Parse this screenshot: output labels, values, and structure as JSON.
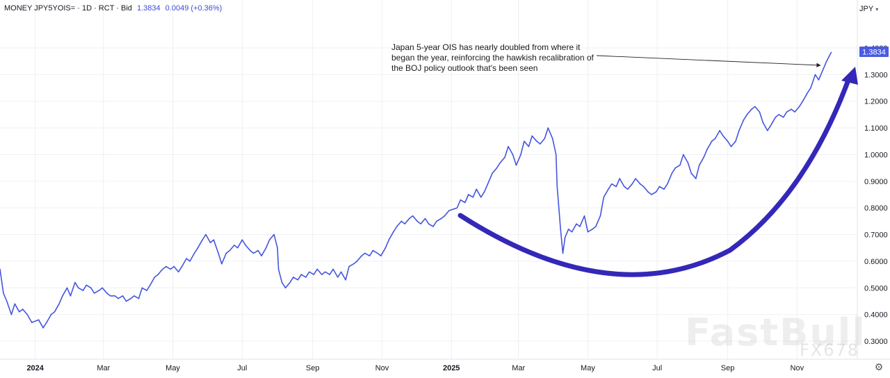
{
  "header": {
    "title": "MONEY JPY5YOIS= · 1D · RCT · Bid",
    "value": "1.3834",
    "change": "0.0049 (+0.36%)"
  },
  "currency_selector": {
    "label": "JPY",
    "icon": "chevron-down-icon"
  },
  "settings_icon": "gear-icon",
  "annotation": {
    "text": "Japan 5-year OIS has nearly doubled from where it began the year, reinforcing the hawkish recalibration of the BOJ policy outlook that's been seen"
  },
  "watermark": {
    "main": "FastBull",
    "sub": "FX678"
  },
  "colors": {
    "series": "#4455dd",
    "curve_arrow": "#3328b8",
    "price_tag": "#4a5be0",
    "grid": "#eef0f3"
  },
  "chart_data": {
    "type": "line",
    "title": "",
    "xlabel": "",
    "ylabel": "",
    "y_unit": "JPY",
    "ylim": [
      0.25,
      1.45
    ],
    "grid": true,
    "last_value_label": "1.3834",
    "y_ticks": [
      {
        "value": 0.3,
        "label": "0.3000"
      },
      {
        "value": 0.4,
        "label": "0.4000"
      },
      {
        "value": 0.5,
        "label": "0.5000"
      },
      {
        "value": 0.6,
        "label": "0.6000"
      },
      {
        "value": 0.7,
        "label": "0.7000"
      },
      {
        "value": 0.8,
        "label": "0.8000"
      },
      {
        "value": 0.9,
        "label": "0.9000"
      },
      {
        "value": 1.0,
        "label": "1.0000"
      },
      {
        "value": 1.1,
        "label": "1.1000"
      },
      {
        "value": 1.2,
        "label": "1.2000"
      },
      {
        "value": 1.3,
        "label": "1.3000"
      },
      {
        "value": 1.4,
        "label": "1.4000"
      }
    ],
    "x_ticks": [
      {
        "date": "2024-01-01",
        "label": "2024",
        "bold": true
      },
      {
        "date": "2024-03-01",
        "label": "Mar"
      },
      {
        "date": "2024-05-01",
        "label": "May"
      },
      {
        "date": "2024-07-01",
        "label": "Jul"
      },
      {
        "date": "2024-09-01",
        "label": "Sep"
      },
      {
        "date": "2024-11-01",
        "label": "Nov"
      },
      {
        "date": "2025-01-01",
        "label": "2025",
        "bold": true
      },
      {
        "date": "2025-03-01",
        "label": "Mar"
      },
      {
        "date": "2025-05-01",
        "label": "May"
      },
      {
        "date": "2025-07-01",
        "label": "Jul"
      },
      {
        "date": "2025-09-01",
        "label": "Sep"
      },
      {
        "date": "2025-11-01",
        "label": "Nov"
      }
    ],
    "x_domain": [
      "2023-12-01",
      "2025-12-24"
    ],
    "series": [
      {
        "points": [
          [
            "2023-12-01",
            0.57
          ],
          [
            "2023-12-04",
            0.48
          ],
          [
            "2023-12-07",
            0.45
          ],
          [
            "2023-12-11",
            0.4
          ],
          [
            "2023-12-14",
            0.44
          ],
          [
            "2023-12-18",
            0.41
          ],
          [
            "2023-12-21",
            0.42
          ],
          [
            "2023-12-25",
            0.4
          ],
          [
            "2023-12-29",
            0.37
          ],
          [
            "2024-01-04",
            0.38
          ],
          [
            "2024-01-08",
            0.35
          ],
          [
            "2024-01-11",
            0.37
          ],
          [
            "2024-01-15",
            0.4
          ],
          [
            "2024-01-18",
            0.41
          ],
          [
            "2024-01-22",
            0.44
          ],
          [
            "2024-01-25",
            0.47
          ],
          [
            "2024-01-29",
            0.5
          ],
          [
            "2024-02-01",
            0.47
          ],
          [
            "2024-02-05",
            0.52
          ],
          [
            "2024-02-08",
            0.5
          ],
          [
            "2024-02-12",
            0.49
          ],
          [
            "2024-02-15",
            0.51
          ],
          [
            "2024-02-19",
            0.5
          ],
          [
            "2024-02-22",
            0.48
          ],
          [
            "2024-02-26",
            0.49
          ],
          [
            "2024-02-29",
            0.5
          ],
          [
            "2024-03-04",
            0.48
          ],
          [
            "2024-03-07",
            0.47
          ],
          [
            "2024-03-11",
            0.47
          ],
          [
            "2024-03-14",
            0.46
          ],
          [
            "2024-03-18",
            0.47
          ],
          [
            "2024-03-21",
            0.45
          ],
          [
            "2024-03-25",
            0.46
          ],
          [
            "2024-03-28",
            0.47
          ],
          [
            "2024-04-01",
            0.46
          ],
          [
            "2024-04-04",
            0.5
          ],
          [
            "2024-04-08",
            0.49
          ],
          [
            "2024-04-11",
            0.51
          ],
          [
            "2024-04-15",
            0.54
          ],
          [
            "2024-04-18",
            0.55
          ],
          [
            "2024-04-22",
            0.57
          ],
          [
            "2024-04-25",
            0.58
          ],
          [
            "2024-04-29",
            0.57
          ],
          [
            "2024-05-02",
            0.58
          ],
          [
            "2024-05-06",
            0.56
          ],
          [
            "2024-05-09",
            0.58
          ],
          [
            "2024-05-13",
            0.61
          ],
          [
            "2024-05-16",
            0.6
          ],
          [
            "2024-05-20",
            0.63
          ],
          [
            "2024-05-23",
            0.65
          ],
          [
            "2024-05-27",
            0.68
          ],
          [
            "2024-05-30",
            0.7
          ],
          [
            "2024-06-03",
            0.67
          ],
          [
            "2024-06-06",
            0.68
          ],
          [
            "2024-06-10",
            0.63
          ],
          [
            "2024-06-13",
            0.59
          ],
          [
            "2024-06-17",
            0.63
          ],
          [
            "2024-06-20",
            0.64
          ],
          [
            "2024-06-24",
            0.66
          ],
          [
            "2024-06-27",
            0.65
          ],
          [
            "2024-07-01",
            0.68
          ],
          [
            "2024-07-04",
            0.66
          ],
          [
            "2024-07-08",
            0.64
          ],
          [
            "2024-07-11",
            0.63
          ],
          [
            "2024-07-15",
            0.64
          ],
          [
            "2024-07-18",
            0.62
          ],
          [
            "2024-07-22",
            0.65
          ],
          [
            "2024-07-25",
            0.68
          ],
          [
            "2024-07-29",
            0.7
          ],
          [
            "2024-08-01",
            0.65
          ],
          [
            "2024-08-02",
            0.57
          ],
          [
            "2024-08-05",
            0.52
          ],
          [
            "2024-08-08",
            0.5
          ],
          [
            "2024-08-12",
            0.52
          ],
          [
            "2024-08-15",
            0.54
          ],
          [
            "2024-08-19",
            0.53
          ],
          [
            "2024-08-22",
            0.55
          ],
          [
            "2024-08-26",
            0.54
          ],
          [
            "2024-08-29",
            0.56
          ],
          [
            "2024-09-02",
            0.55
          ],
          [
            "2024-09-05",
            0.57
          ],
          [
            "2024-09-09",
            0.55
          ],
          [
            "2024-09-12",
            0.56
          ],
          [
            "2024-09-16",
            0.55
          ],
          [
            "2024-09-19",
            0.57
          ],
          [
            "2024-09-23",
            0.54
          ],
          [
            "2024-09-26",
            0.56
          ],
          [
            "2024-09-30",
            0.53
          ],
          [
            "2024-10-03",
            0.58
          ],
          [
            "2024-10-07",
            0.59
          ],
          [
            "2024-10-10",
            0.6
          ],
          [
            "2024-10-14",
            0.62
          ],
          [
            "2024-10-17",
            0.63
          ],
          [
            "2024-10-21",
            0.62
          ],
          [
            "2024-10-24",
            0.64
          ],
          [
            "2024-10-28",
            0.63
          ],
          [
            "2024-10-31",
            0.62
          ],
          [
            "2024-11-04",
            0.65
          ],
          [
            "2024-11-07",
            0.68
          ],
          [
            "2024-11-11",
            0.71
          ],
          [
            "2024-11-14",
            0.73
          ],
          [
            "2024-11-18",
            0.75
          ],
          [
            "2024-11-21",
            0.74
          ],
          [
            "2024-11-25",
            0.76
          ],
          [
            "2024-11-28",
            0.77
          ],
          [
            "2024-12-02",
            0.75
          ],
          [
            "2024-12-05",
            0.74
          ],
          [
            "2024-12-09",
            0.76
          ],
          [
            "2024-12-12",
            0.74
          ],
          [
            "2024-12-16",
            0.73
          ],
          [
            "2024-12-19",
            0.75
          ],
          [
            "2024-12-23",
            0.76
          ],
          [
            "2024-12-26",
            0.77
          ],
          [
            "2024-12-30",
            0.79
          ],
          [
            "2025-01-06",
            0.8
          ],
          [
            "2025-01-09",
            0.83
          ],
          [
            "2025-01-13",
            0.82
          ],
          [
            "2025-01-16",
            0.85
          ],
          [
            "2025-01-20",
            0.84
          ],
          [
            "2025-01-23",
            0.87
          ],
          [
            "2025-01-27",
            0.84
          ],
          [
            "2025-01-30",
            0.86
          ],
          [
            "2025-02-03",
            0.9
          ],
          [
            "2025-02-06",
            0.93
          ],
          [
            "2025-02-10",
            0.95
          ],
          [
            "2025-02-13",
            0.97
          ],
          [
            "2025-02-17",
            0.99
          ],
          [
            "2025-02-20",
            1.03
          ],
          [
            "2025-02-24",
            1.0
          ],
          [
            "2025-02-27",
            0.96
          ],
          [
            "2025-03-03",
            1.0
          ],
          [
            "2025-03-06",
            1.05
          ],
          [
            "2025-03-10",
            1.03
          ],
          [
            "2025-03-13",
            1.07
          ],
          [
            "2025-03-17",
            1.05
          ],
          [
            "2025-03-20",
            1.04
          ],
          [
            "2025-03-24",
            1.06
          ],
          [
            "2025-03-27",
            1.1
          ],
          [
            "2025-03-31",
            1.06
          ],
          [
            "2025-04-03",
            1.0
          ],
          [
            "2025-04-04",
            0.88
          ],
          [
            "2025-04-07",
            0.72
          ],
          [
            "2025-04-09",
            0.63
          ],
          [
            "2025-04-11",
            0.69
          ],
          [
            "2025-04-14",
            0.72
          ],
          [
            "2025-04-17",
            0.71
          ],
          [
            "2025-04-21",
            0.74
          ],
          [
            "2025-04-24",
            0.73
          ],
          [
            "2025-04-28",
            0.77
          ],
          [
            "2025-05-01",
            0.71
          ],
          [
            "2025-05-05",
            0.72
          ],
          [
            "2025-05-08",
            0.73
          ],
          [
            "2025-05-12",
            0.77
          ],
          [
            "2025-05-15",
            0.84
          ],
          [
            "2025-05-19",
            0.87
          ],
          [
            "2025-05-22",
            0.89
          ],
          [
            "2025-05-26",
            0.88
          ],
          [
            "2025-05-29",
            0.91
          ],
          [
            "2025-06-02",
            0.88
          ],
          [
            "2025-06-05",
            0.87
          ],
          [
            "2025-06-09",
            0.89
          ],
          [
            "2025-06-12",
            0.91
          ],
          [
            "2025-06-16",
            0.89
          ],
          [
            "2025-06-19",
            0.88
          ],
          [
            "2025-06-23",
            0.86
          ],
          [
            "2025-06-26",
            0.85
          ],
          [
            "2025-06-30",
            0.86
          ],
          [
            "2025-07-03",
            0.88
          ],
          [
            "2025-07-07",
            0.87
          ],
          [
            "2025-07-10",
            0.89
          ],
          [
            "2025-07-14",
            0.93
          ],
          [
            "2025-07-17",
            0.95
          ],
          [
            "2025-07-21",
            0.96
          ],
          [
            "2025-07-24",
            1.0
          ],
          [
            "2025-07-28",
            0.97
          ],
          [
            "2025-07-31",
            0.93
          ],
          [
            "2025-08-04",
            0.91
          ],
          [
            "2025-08-07",
            0.96
          ],
          [
            "2025-08-11",
            0.99
          ],
          [
            "2025-08-14",
            1.02
          ],
          [
            "2025-08-18",
            1.05
          ],
          [
            "2025-08-21",
            1.06
          ],
          [
            "2025-08-25",
            1.09
          ],
          [
            "2025-08-28",
            1.07
          ],
          [
            "2025-09-01",
            1.05
          ],
          [
            "2025-09-04",
            1.03
          ],
          [
            "2025-09-08",
            1.05
          ],
          [
            "2025-09-11",
            1.09
          ],
          [
            "2025-09-15",
            1.13
          ],
          [
            "2025-09-18",
            1.15
          ],
          [
            "2025-09-22",
            1.17
          ],
          [
            "2025-09-25",
            1.18
          ],
          [
            "2025-09-29",
            1.16
          ],
          [
            "2025-10-02",
            1.12
          ],
          [
            "2025-10-06",
            1.09
          ],
          [
            "2025-10-09",
            1.11
          ],
          [
            "2025-10-13",
            1.14
          ],
          [
            "2025-10-16",
            1.15
          ],
          [
            "2025-10-20",
            1.14
          ],
          [
            "2025-10-23",
            1.16
          ],
          [
            "2025-10-27",
            1.17
          ],
          [
            "2025-10-30",
            1.16
          ],
          [
            "2025-11-03",
            1.18
          ],
          [
            "2025-11-06",
            1.2
          ],
          [
            "2025-11-10",
            1.23
          ],
          [
            "2025-11-13",
            1.25
          ],
          [
            "2025-11-17",
            1.3
          ],
          [
            "2025-11-20",
            1.28
          ],
          [
            "2025-11-24",
            1.32
          ],
          [
            "2025-11-27",
            1.35
          ],
          [
            "2025-12-01",
            1.3834
          ]
        ]
      }
    ]
  }
}
